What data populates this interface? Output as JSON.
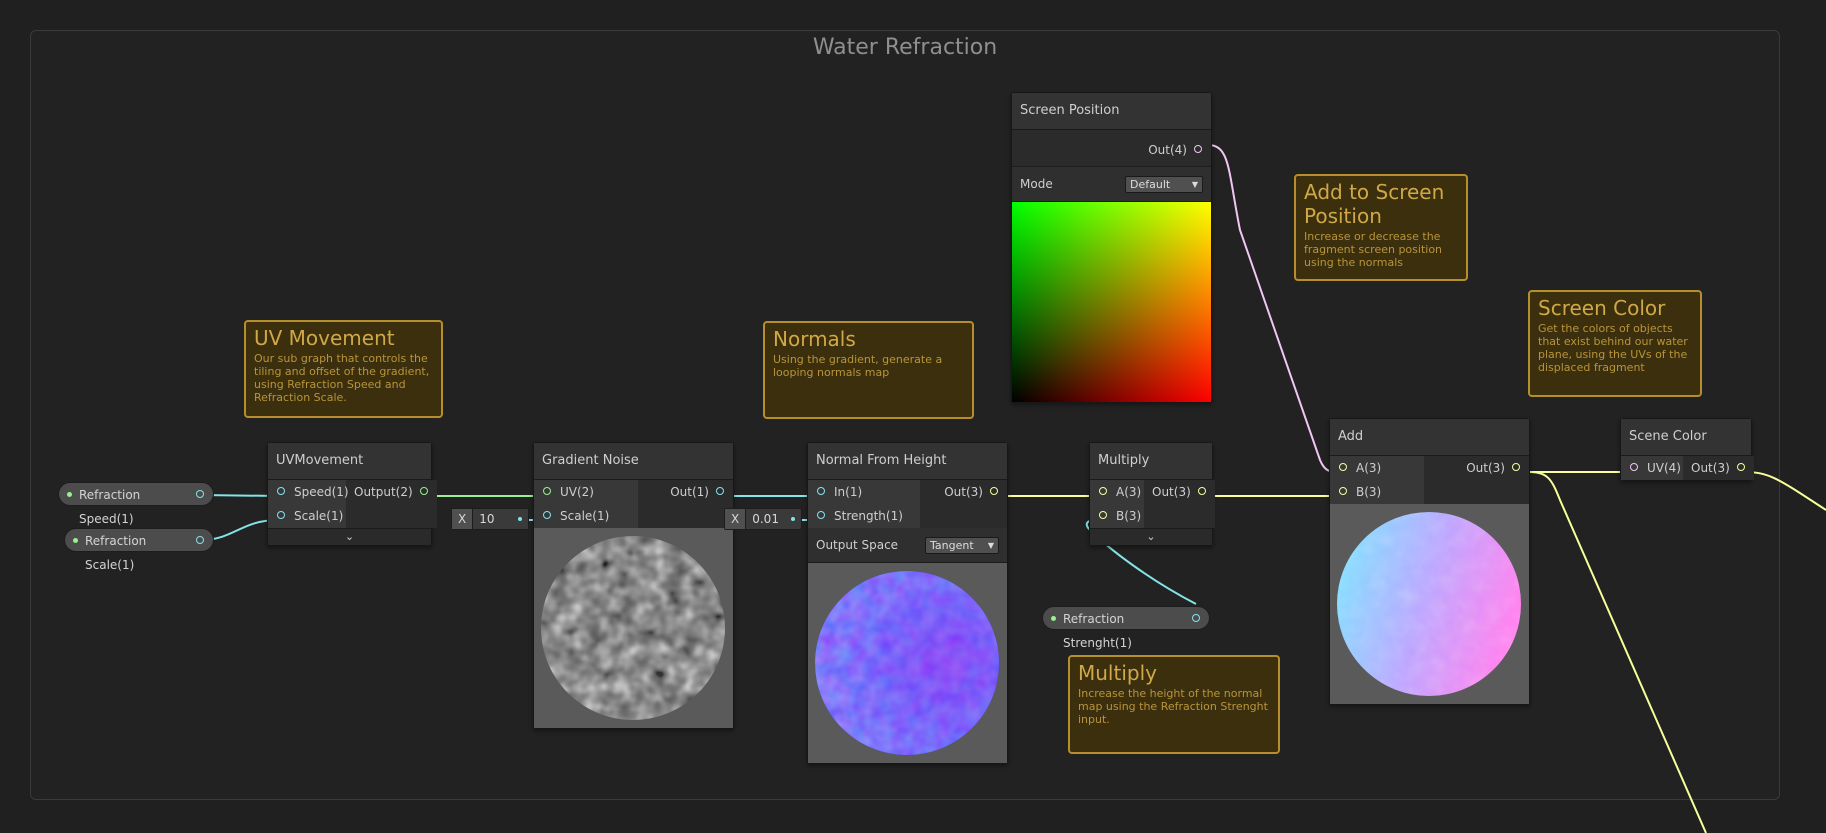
{
  "group": {
    "title": "Water Refraction"
  },
  "properties": {
    "refraction_speed": "Refraction Speed(1)",
    "refraction_scale": "Refraction Scale(1)",
    "refraction_strength": "Refraction Strenght(1)"
  },
  "nodes": {
    "uv_movement": {
      "title": "UVMovement",
      "inputs": [
        "Speed(1)",
        "Scale(1)"
      ],
      "output": "Output(2)"
    },
    "gradient_noise": {
      "title": "Gradient Noise",
      "inputs": [
        "UV(2)",
        "Scale(1)"
      ],
      "output": "Out(1)",
      "scale_label": "X",
      "scale_value": "10"
    },
    "normal_from_height": {
      "title": "Normal From Height",
      "inputs": [
        "In(1)",
        "Strength(1)"
      ],
      "output": "Out(3)",
      "strength_label": "X",
      "strength_value": "0.01",
      "output_space_label": "Output Space",
      "output_space_value": "Tangent"
    },
    "multiply": {
      "title": "Multiply",
      "inputs": [
        "A(3)",
        "B(3)"
      ],
      "output": "Out(3)"
    },
    "screen_position": {
      "title": "Screen Position",
      "output": "Out(4)",
      "mode_label": "Mode",
      "mode_value": "Default"
    },
    "add": {
      "title": "Add",
      "inputs": [
        "A(3)",
        "B(3)"
      ],
      "output": "Out(3)"
    },
    "scene_color": {
      "title": "Scene Color",
      "input": "UV(4)",
      "output": "Out(3)"
    }
  },
  "stickies": {
    "uv_movement": {
      "title": "UV Movement",
      "body": "Our sub graph that controls the tiling and offset of the gradient, using Refraction Speed and Refraction Scale."
    },
    "normals": {
      "title": "Normals",
      "body": "Using the gradient, generate a looping normals map"
    },
    "add_screen": {
      "title": "Add to Screen Position",
      "body": "Increase or decrease the fragment screen position using the normals"
    },
    "screen_color": {
      "title": "Screen Color",
      "body": "Get the colors of objects that exist behind our water plane, using the UVs of the displaced fragment"
    },
    "multiply": {
      "title": "Multiply",
      "body": "Increase the height of the normal map using the Refraction Strenght input."
    }
  },
  "colors": {
    "vector1": "#84e4e7",
    "vector2": "#9aef92",
    "vector3": "#f6ff9a",
    "vector4": "#f1c6f5",
    "sticky_border": "#b68f2c"
  },
  "icons": {
    "collapse": "chevron-down-icon"
  }
}
